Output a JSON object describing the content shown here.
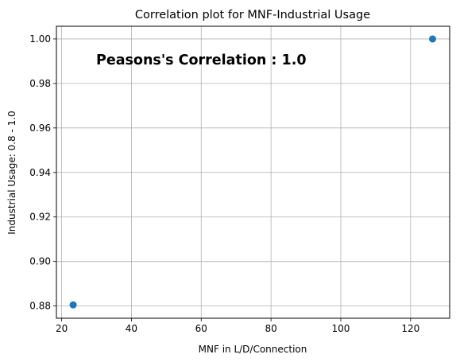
{
  "chart_data": {
    "type": "scatter",
    "title": "Correlation plot for MNF-Industrial Usage",
    "xlabel": "MNF in L/D/Connection",
    "ylabel": "Industrial Usage: 0.8 - 1.0",
    "annotation": "Peasons's Correlation : 1.0",
    "xlim": [
      18.5,
      131.2
    ],
    "ylim": [
      0.8745,
      1.0057
    ],
    "xticks": [
      20,
      40,
      60,
      80,
      100,
      120
    ],
    "xtick_labels": [
      "20",
      "40",
      "60",
      "80",
      "100",
      "120"
    ],
    "yticks": [
      0.88,
      0.9,
      0.92,
      0.94,
      0.96,
      0.98,
      1.0
    ],
    "ytick_labels": [
      "0.88",
      "0.90",
      "0.92",
      "0.94",
      "0.96",
      "0.98",
      "1.00"
    ],
    "grid": true,
    "marker_color": "#1f77b4",
    "points": [
      {
        "x": 23.3,
        "y": 0.8805
      },
      {
        "x": 126.3,
        "y": 1.0
      }
    ]
  }
}
